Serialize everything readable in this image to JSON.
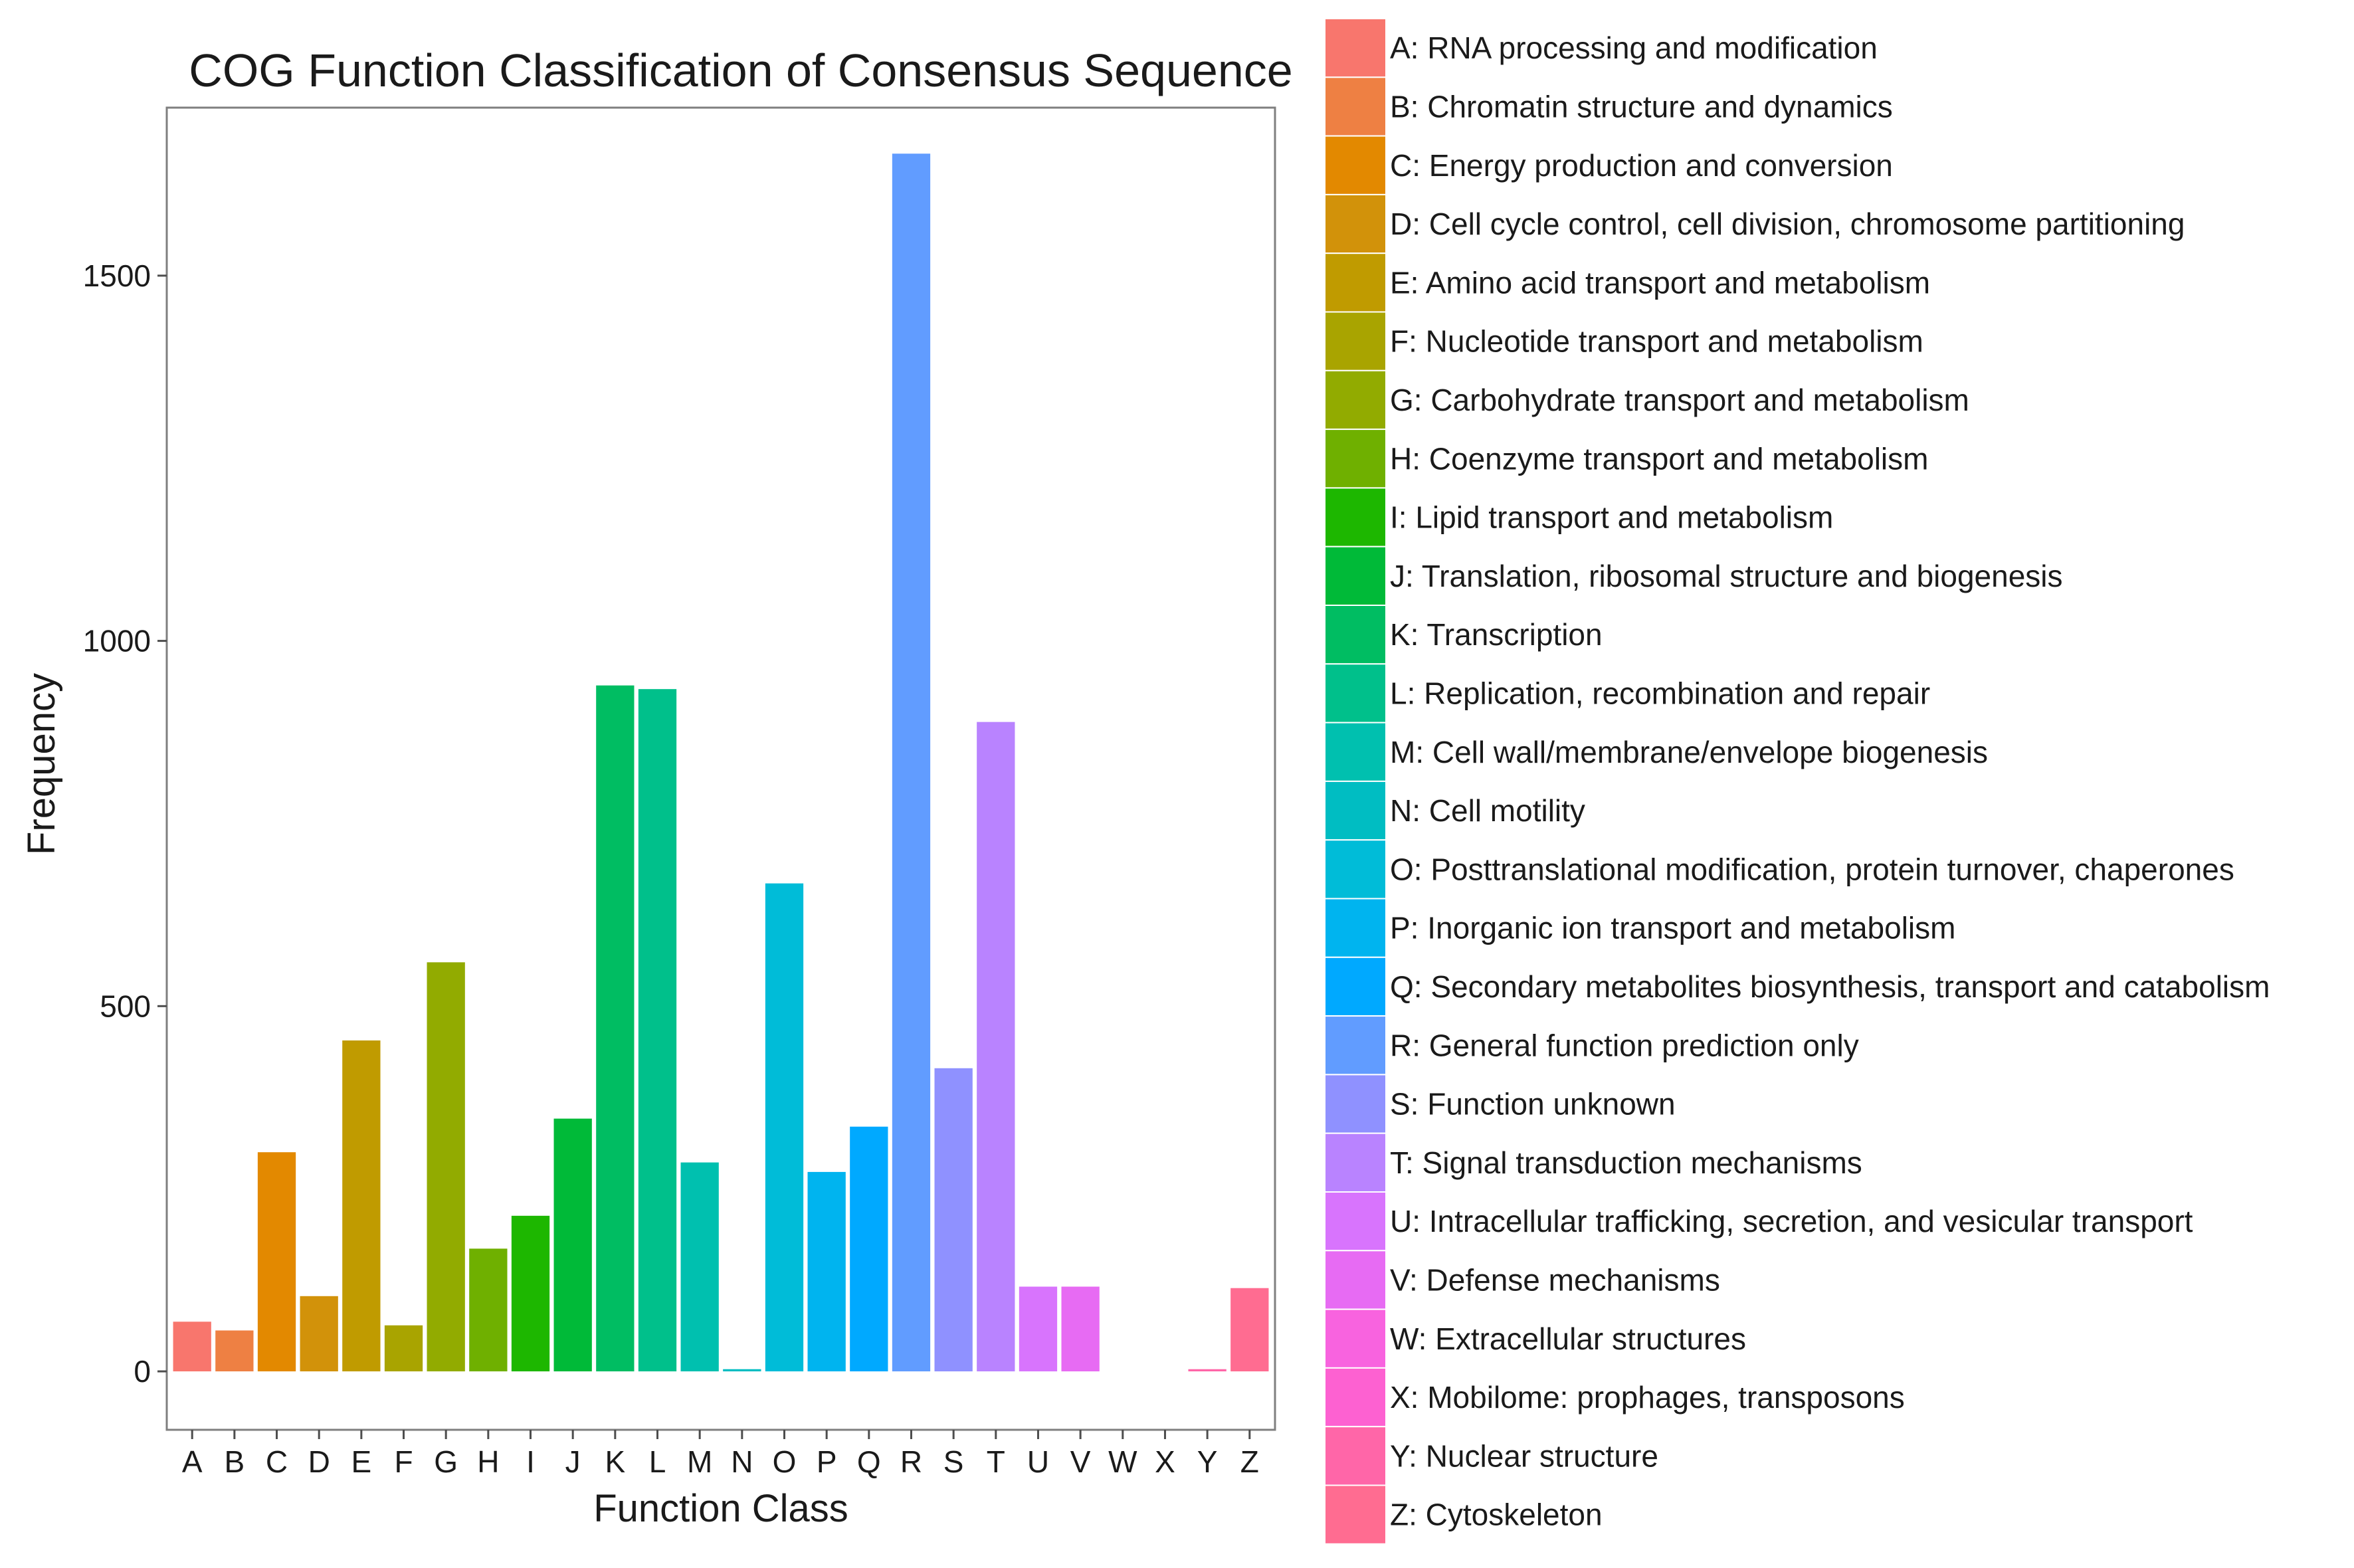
{
  "chart_data": {
    "type": "bar",
    "title": "COG Function Classification of Consensus Sequence",
    "xlabel": "Function Class",
    "ylabel": "Frequency",
    "ylim": [
      -80,
      1730
    ],
    "yticks": [
      0,
      500,
      1000,
      1500
    ],
    "ytick_labels": [
      "0",
      "500",
      "1000",
      "1500"
    ],
    "grid": false,
    "legend_position": "right",
    "categories": [
      "A",
      "B",
      "C",
      "D",
      "E",
      "F",
      "G",
      "H",
      "I",
      "J",
      "K",
      "L",
      "M",
      "N",
      "O",
      "P",
      "Q",
      "R",
      "S",
      "T",
      "U",
      "V",
      "W",
      "X",
      "Y",
      "Z"
    ],
    "values": [
      68,
      56,
      300,
      103,
      453,
      63,
      560,
      168,
      213,
      346,
      939,
      934,
      286,
      3,
      668,
      273,
      335,
      1667,
      415,
      889,
      116,
      116,
      0,
      0,
      3,
      114
    ],
    "colors": [
      "#F8766D",
      "#EE8043",
      "#E38900",
      "#D2920A",
      "#C09B00",
      "#A9A400",
      "#92AB00",
      "#6FB000",
      "#1DB700",
      "#00BA38",
      "#00BD62",
      "#00C08B",
      "#00C0AF",
      "#00BDC2",
      "#00BCD8",
      "#00B4EF",
      "#00A9FF",
      "#619CFF",
      "#8F91FF",
      "#B983FF",
      "#D874FD",
      "#E76BF3",
      "#F863DF",
      "#FD61D1",
      "#FF66A8",
      "#FF6C91"
    ],
    "legend": [
      "A: RNA processing and modification",
      "B: Chromatin structure and dynamics",
      "C: Energy production and conversion",
      "D: Cell cycle control, cell division, chromosome partitioning",
      "E: Amino acid transport and metabolism",
      "F: Nucleotide transport and metabolism",
      "G: Carbohydrate transport and metabolism",
      "H: Coenzyme transport and metabolism",
      "I: Lipid transport and metabolism",
      "J: Translation, ribosomal structure and biogenesis",
      "K: Transcription",
      "L: Replication, recombination and repair",
      "M: Cell wall/membrane/envelope biogenesis",
      "N: Cell motility",
      "O: Posttranslational modification, protein turnover, chaperones",
      "P: Inorganic ion transport and metabolism",
      "Q: Secondary metabolites biosynthesis, transport and catabolism",
      "R: General function prediction only",
      "S: Function unknown",
      "T: Signal transduction mechanisms",
      "U: Intracellular trafficking, secretion, and vesicular transport",
      "V: Defense mechanisms",
      "W: Extracellular structures",
      "X: Mobilome: prophages, transposons",
      "Y: Nuclear structure",
      "Z: Cytoskeleton"
    ]
  }
}
